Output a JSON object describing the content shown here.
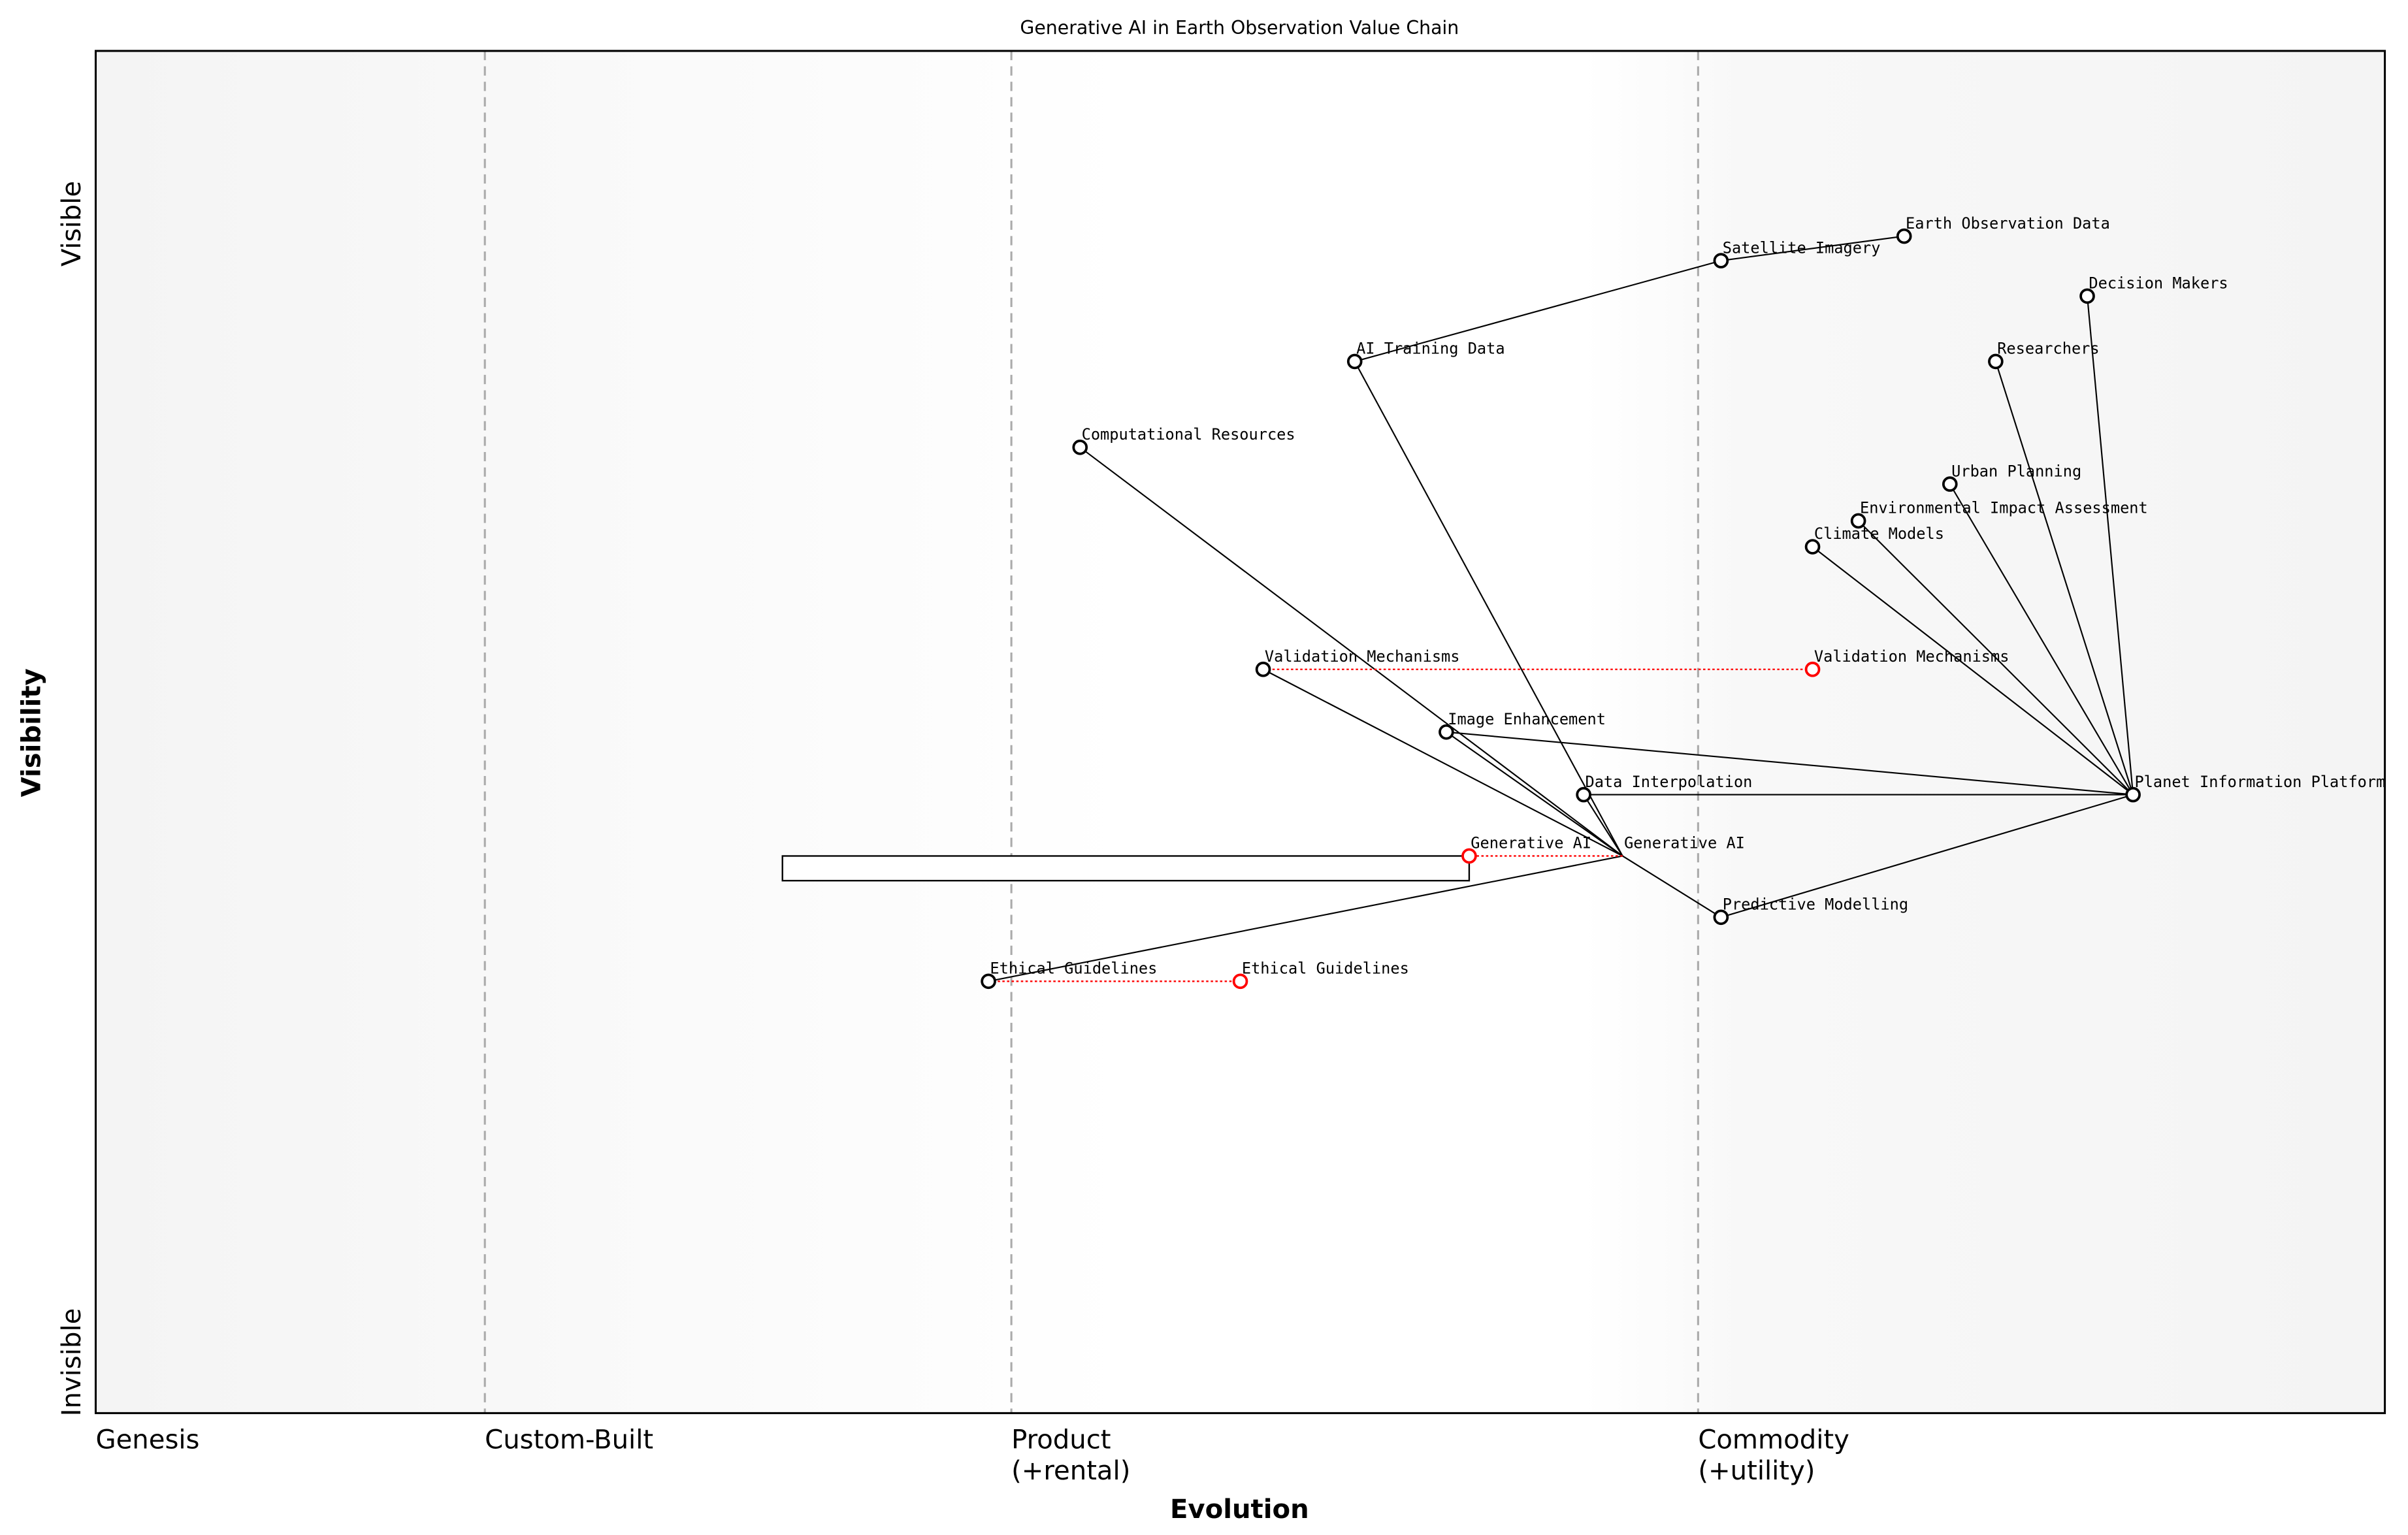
{
  "chart_data": {
    "type": "wardley-map",
    "title": "Generative AI in Earth Observation Value Chain",
    "xlabel": "Evolution",
    "ylabel": "Visibility",
    "xlim": [
      0,
      1
    ],
    "ylim": [
      0,
      1
    ],
    "y_tick_labels": {
      "top": "Visible",
      "bottom": "Invisible"
    },
    "stages": [
      {
        "label": "Genesis",
        "x": 0.0
      },
      {
        "label": "Custom-Built",
        "x": 0.17
      },
      {
        "label": "Product\n(+rental)",
        "x": 0.4
      },
      {
        "label": "Commodity\n(+utility)",
        "x": 0.7
      }
    ],
    "components": [
      {
        "id": "eod",
        "name": "Earth Observation Data",
        "evolution": 0.79,
        "visibility": 0.864
      },
      {
        "id": "sat",
        "name": "Satellite Imagery",
        "evolution": 0.71,
        "visibility": 0.846
      },
      {
        "id": "dm",
        "name": "Decision Makers",
        "evolution": 0.87,
        "visibility": 0.82
      },
      {
        "id": "aitd",
        "name": "AI Training Data",
        "evolution": 0.55,
        "visibility": 0.772
      },
      {
        "id": "res",
        "name": "Researchers",
        "evolution": 0.83,
        "visibility": 0.772
      },
      {
        "id": "comp",
        "name": "Computational Resources",
        "evolution": 0.43,
        "visibility": 0.709
      },
      {
        "id": "urb",
        "name": "Urban Planning",
        "evolution": 0.81,
        "visibility": 0.682
      },
      {
        "id": "eia",
        "name": "Environmental Impact Assessment",
        "evolution": 0.77,
        "visibility": 0.655
      },
      {
        "id": "clim",
        "name": "Climate Models",
        "evolution": 0.75,
        "visibility": 0.636
      },
      {
        "id": "val",
        "name": "Validation Mechanisms",
        "evolution": 0.51,
        "visibility": 0.546
      },
      {
        "id": "img",
        "name": "Image Enhancement",
        "evolution": 0.59,
        "visibility": 0.5
      },
      {
        "id": "interp",
        "name": "Data Interpolation",
        "evolution": 0.65,
        "visibility": 0.454
      },
      {
        "id": "pip",
        "name": "Planet Information Platform",
        "evolution": 0.89,
        "visibility": 0.454
      },
      {
        "id": "gen",
        "name": "Generative AI",
        "evolution": 0.667,
        "visibility": 0.409,
        "hidden_marker": true
      },
      {
        "id": "pred",
        "name": "Predictive Modelling",
        "evolution": 0.71,
        "visibility": 0.364
      },
      {
        "id": "eth",
        "name": "Ethical Guidelines",
        "evolution": 0.39,
        "visibility": 0.317
      }
    ],
    "evolutions": [
      {
        "from": "val",
        "name": "Validation Mechanisms",
        "evolution": 0.75
      },
      {
        "from": "gen",
        "name": "Generative AI",
        "evolution": 0.6
      },
      {
        "from": "eth",
        "name": "Ethical Guidelines",
        "evolution": 0.5
      }
    ],
    "pipelines": [
      {
        "component": "gen",
        "from_evolution": 0.3,
        "to_evolution": 0.6
      }
    ],
    "links": [
      [
        "eod",
        "sat"
      ],
      [
        "sat",
        "aitd"
      ],
      [
        "aitd",
        "gen"
      ],
      [
        "comp",
        "gen"
      ],
      [
        "val",
        "gen"
      ],
      [
        "img",
        "gen"
      ],
      [
        "img",
        "pip"
      ],
      [
        "interp",
        "gen"
      ],
      [
        "interp",
        "pip"
      ],
      [
        "pred",
        "gen"
      ],
      [
        "pred",
        "pip"
      ],
      [
        "eth",
        "gen"
      ],
      [
        "clim",
        "pip"
      ],
      [
        "eia",
        "pip"
      ],
      [
        "urb",
        "pip"
      ],
      [
        "res",
        "pip"
      ],
      [
        "dm",
        "pip"
      ]
    ],
    "colors": {
      "component": "#000000",
      "evolved": "#ff0000",
      "stage_line": "#aaaaaa",
      "band_edge": "#f4f4f4",
      "band_mid": "#ffffff"
    }
  }
}
